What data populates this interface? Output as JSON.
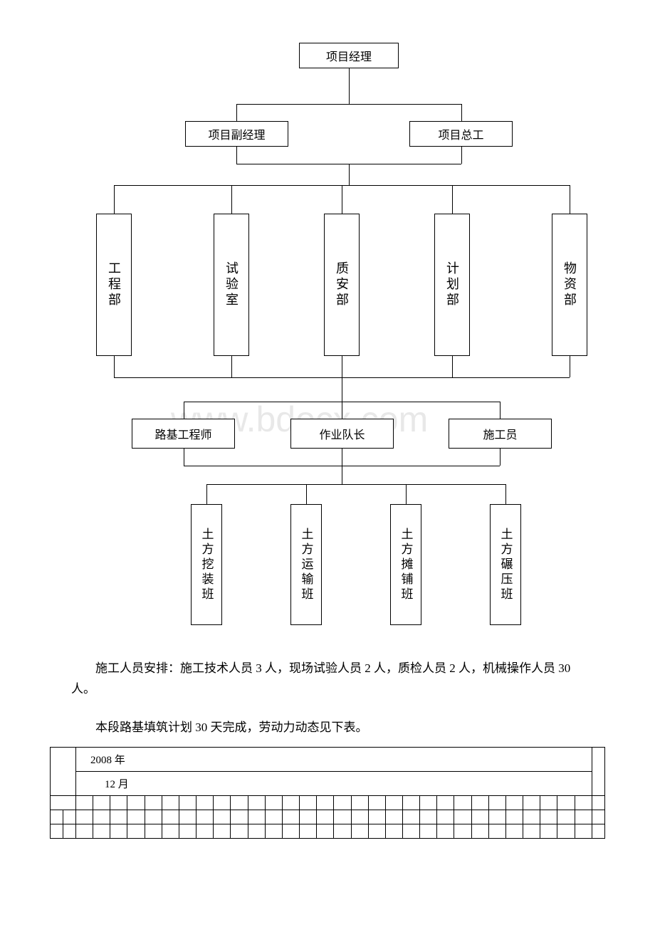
{
  "chart": {
    "type": "flowchart",
    "line_color": "#000000",
    "background_color": "#ffffff",
    "font_family": "SimSun",
    "nodes": {
      "root": "项目经理",
      "level2": [
        "项目副经理",
        "项目总工"
      ],
      "level3": [
        "工程部",
        "试验室",
        "质安部",
        "计划部",
        "物资部"
      ],
      "level4": [
        "路基工程师",
        "作业队长",
        "施工员"
      ],
      "level5": [
        "土方挖装班",
        "土方运输班",
        "土方摊铺班",
        "土方碾压班"
      ]
    },
    "watermark": "www.bdocx.com"
  },
  "paragraphs": {
    "p1": "施工人员安排：施工技术人员 3 人，现场试验人员 2 人，质检人员 2 人，机械操作人员 30 人。",
    "p2": "本段路基填筑计划 30 天完成，劳动力动态见下表。"
  },
  "table": {
    "year_label": "2008 年",
    "month_label": "12 月",
    "day_columns": 30,
    "lead_columns": 2,
    "tail_columns": 1
  }
}
